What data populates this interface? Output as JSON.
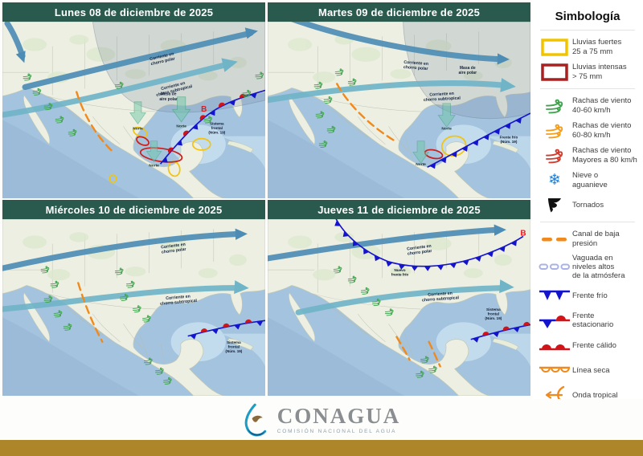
{
  "panels": [
    {
      "date": "Lunes 08 de diciembre de 2025"
    },
    {
      "date": "Martes 09 de diciembre de 2025"
    },
    {
      "date": "Miércoles 10 de diciembre de 2025"
    },
    {
      "date": "Jueves 11 de diciembre de 2025"
    }
  ],
  "map_labels": {
    "jet1a": "Corriente en",
    "jet1b": "chorro polar",
    "jet2a": "Corriente en",
    "jet2b": "chorro subtropical",
    "airmass_a": "Masa de",
    "airmass_b": "aire polar",
    "norte": "Norte",
    "low": "B",
    "sistema_a": "Sistema",
    "sistema_b": "frontal",
    "sistema_c": "(Núm. 19)",
    "frente_frio_a": "Frente frío",
    "frente_frio_b": "(Núm. 19)",
    "nuevo_a": "Nuevo",
    "nuevo_b": "frente frío"
  },
  "legend": {
    "title": "Simbología",
    "items": [
      {
        "name": "lluvias-fuertes",
        "lines": [
          "Lluvias fuertes",
          "25 a 75 mm"
        ]
      },
      {
        "name": "lluvias-intensas",
        "lines": [
          "Lluvias intensas",
          "> 75 mm"
        ]
      },
      {
        "name": "rachas-40-60",
        "lines": [
          "Rachas de viento",
          "40-60 km/h"
        ]
      },
      {
        "name": "rachas-60-80",
        "lines": [
          "Rachas de viento",
          "60-80 km/h"
        ]
      },
      {
        "name": "rachas-80",
        "lines": [
          "Rachas de viento",
          "Mayores a 80 km/h"
        ]
      },
      {
        "name": "nieve",
        "lines": [
          "Nieve o",
          "aguanieve"
        ]
      },
      {
        "name": "tornados",
        "lines": [
          "Tornados"
        ]
      },
      {
        "name": "canal-baja",
        "lines": [
          "Canal de baja",
          "presión"
        ]
      },
      {
        "name": "vaguada",
        "lines": [
          "Vaguada en",
          "niveles altos",
          "de la atmósfera"
        ]
      },
      {
        "name": "frente-frio",
        "lines": [
          "Frente frío"
        ]
      },
      {
        "name": "frente-estacionario",
        "lines": [
          "Frente",
          "estacionario"
        ]
      },
      {
        "name": "frente-calido",
        "lines": [
          "Frente cálido"
        ]
      },
      {
        "name": "linea-seca",
        "lines": [
          "Línea seca"
        ]
      },
      {
        "name": "onda-tropical",
        "lines": [
          "Onda tropical"
        ]
      }
    ]
  },
  "footer": {
    "brand": "CONAGUA",
    "subtitle": "COMISIÓN NACIONAL DEL AGUA"
  },
  "colors": {
    "header": "#2a5a4e",
    "footer_bar": "#ad8629",
    "rain_strong": "#f2c400",
    "rain_intense": "#a8201f",
    "wind_40_60": "#3fa34d",
    "wind_60_80": "#f59e1b",
    "wind_80": "#d23b2e",
    "snow": "#1d7fd6",
    "low_pressure_channel": "#f08a1d",
    "trough": "#aab3e6",
    "cold_front": "#1414cf",
    "warm_front": "#d21317",
    "jet_polar": "#4d8db5",
    "jet_subtropical": "#70b4c8"
  }
}
